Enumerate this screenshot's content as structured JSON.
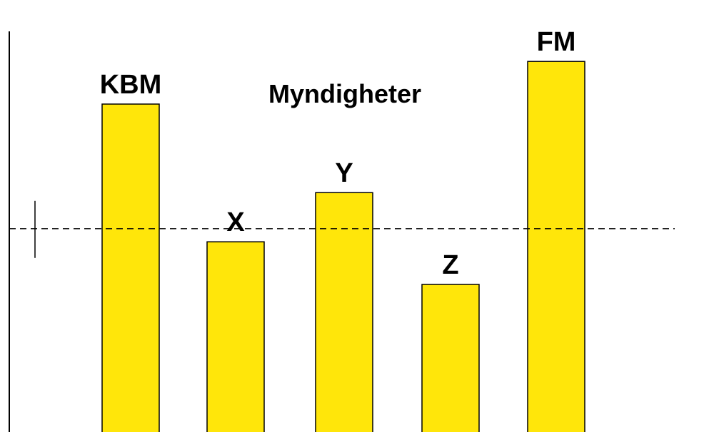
{
  "chart_data": {
    "type": "bar",
    "categories": [
      "KBM",
      "X",
      "Y",
      "Z",
      "FM"
    ],
    "values": [
      100,
      58,
      73,
      45,
      113
    ],
    "group_label": "Myndigheter",
    "reference_line": {
      "value": 62,
      "style": "dashed"
    },
    "bar_color": "#FFE60A",
    "bar_stroke": "#000000",
    "ylim": [
      0,
      126
    ],
    "grid": false,
    "legend": "none",
    "title": "",
    "xlabel": "",
    "ylabel": ""
  }
}
